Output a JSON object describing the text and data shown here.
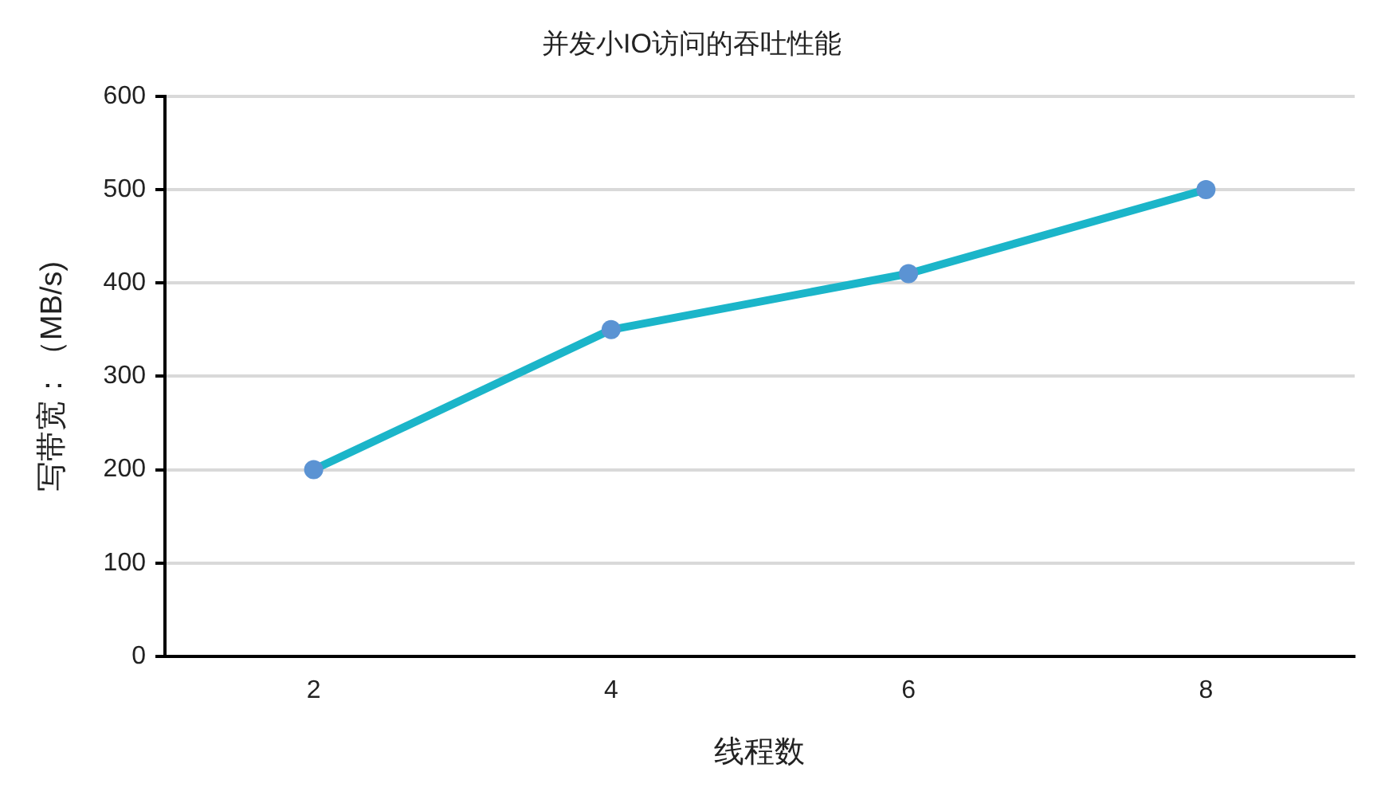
{
  "chart_data": {
    "type": "line",
    "title": "并发小IO访问的吞吐性能",
    "xlabel": "线程数",
    "ylabel": "写带宽：（MB/s)",
    "categories": [
      "2",
      "4",
      "6",
      "8"
    ],
    "values": [
      200,
      350,
      410,
      500
    ],
    "color": "#1bb5c9",
    "colors": [
      "#5b93d3",
      "#5b93d3",
      "#5b93d3",
      "#5b93d3"
    ],
    "ylim": [
      0,
      600
    ],
    "yticks": [
      0,
      100,
      200,
      300,
      400,
      500,
      600
    ],
    "grid": "y",
    "marker": "circle",
    "line_style": "solid"
  }
}
